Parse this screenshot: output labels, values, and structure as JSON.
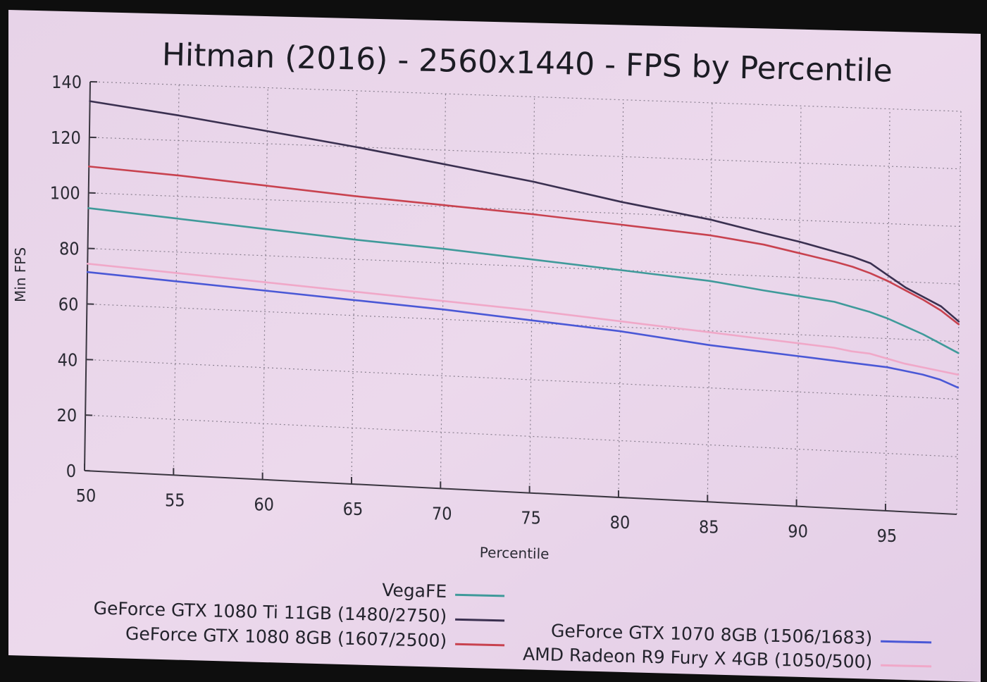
{
  "chart_data": {
    "type": "line",
    "title": "Hitman (2016) - 2560x1440 - FPS by Percentile",
    "xlabel": "Percentile",
    "ylabel": "Min FPS",
    "xlim": [
      50,
      99
    ],
    "ylim": [
      0,
      140
    ],
    "xticks": [
      50,
      55,
      60,
      65,
      70,
      75,
      80,
      85,
      90,
      95
    ],
    "yticks": [
      0,
      20,
      40,
      60,
      80,
      100,
      120,
      140
    ],
    "grid": true,
    "legend_position": "bottom",
    "x": [
      50,
      55,
      60,
      65,
      70,
      75,
      80,
      85,
      88,
      90,
      92,
      93,
      94,
      95,
      96,
      97,
      98,
      99
    ],
    "series": [
      {
        "name": "VegaFE",
        "color": "#3f9a9a",
        "values": [
          94.5,
          92,
          89.5,
          87,
          85,
          82.5,
          80,
          77.5,
          75,
          73.5,
          72,
          70.5,
          69,
          67,
          64.5,
          62,
          59,
          56
        ]
      },
      {
        "name": "GeForce GTX 1080 Ti 11GB (1480/2750)",
        "color": "#3a3050",
        "values": [
          133,
          129,
          124.5,
          120,
          115,
          110,
          104,
          99,
          95,
          92.5,
          89.5,
          88,
          86,
          82,
          78,
          75,
          72,
          67
        ]
      },
      {
        "name": "GeForce GTX 1080 8GB (1607/2500)",
        "color": "#c8424f",
        "values": [
          109.5,
          107.5,
          105,
          102.5,
          100.5,
          98.5,
          96,
          93.5,
          91,
          88.5,
          86,
          84.5,
          82.5,
          80,
          77,
          74,
          70.5,
          66
        ]
      },
      {
        "name": "GeForce GTX 1070 8GB (1506/1683)",
        "color": "#4a58d6",
        "values": [
          71.5,
          69.5,
          67.5,
          65.5,
          63.5,
          61,
          58.5,
          55,
          53.5,
          52.5,
          51.5,
          51,
          50.5,
          50,
          49,
          48,
          46.5,
          44
        ]
      },
      {
        "name": "AMD Radeon R9 Fury X 4GB (1050/500)",
        "color": "#f0a8c8",
        "values": [
          74.5,
          72.5,
          70.5,
          68.5,
          66.5,
          64.5,
          62,
          59.5,
          58,
          57,
          56,
          55,
          54.5,
          53,
          51.5,
          50.5,
          49.5,
          48.5
        ]
      }
    ]
  }
}
